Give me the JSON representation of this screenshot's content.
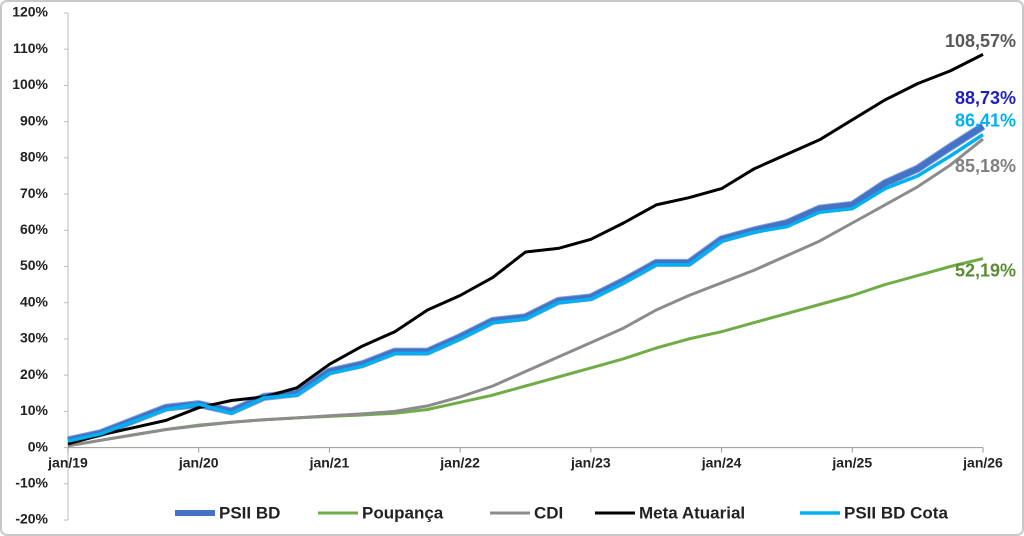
{
  "chart_data": {
    "type": "line",
    "categories": [
      "jan/19",
      null,
      null,
      null,
      "jan/20",
      null,
      null,
      null,
      "jan/21",
      null,
      null,
      null,
      "jan/22",
      null,
      null,
      null,
      "jan/23",
      null,
      null,
      null,
      "jan/24",
      null,
      null,
      null,
      "jan/25",
      null,
      null,
      null,
      "jan/26"
    ],
    "ylim": [
      -20,
      120
    ],
    "yticks": [
      {
        "value": -20,
        "label": "-20%"
      },
      {
        "value": -10,
        "label": "-10%"
      },
      {
        "value": 0,
        "label": "0%"
      },
      {
        "value": 10,
        "label": "10%"
      },
      {
        "value": 20,
        "label": "20%"
      },
      {
        "value": 30,
        "label": "30%"
      },
      {
        "value": 40,
        "label": "40%"
      },
      {
        "value": 50,
        "label": "50%"
      },
      {
        "value": 60,
        "label": "60%"
      },
      {
        "value": 70,
        "label": "70%"
      },
      {
        "value": 80,
        "label": "80%"
      },
      {
        "value": 90,
        "label": "90%"
      },
      {
        "value": 100,
        "label": "100%"
      },
      {
        "value": 110,
        "label": "110%"
      },
      {
        "value": 120,
        "label": "120%"
      }
    ],
    "grid": false,
    "legend": "bottom",
    "series": [
      {
        "name": "PSII BD",
        "color": "#4472c4",
        "width": 6,
        "label_color": "#1f1fbf",
        "values": [
          2,
          4,
          7.5,
          11,
          12,
          10,
          14,
          15,
          21,
          23,
          26.5,
          26.5,
          30.5,
          35,
          36,
          40.5,
          41.5,
          46,
          51,
          51,
          57.5,
          60,
          62,
          66,
          67,
          73,
          77,
          83,
          88.73
        ],
        "value_labels": [
          null,
          null,
          null,
          null,
          null,
          null,
          null,
          null,
          null,
          null,
          null,
          null,
          null,
          null,
          null,
          null,
          null,
          null,
          null,
          null,
          null,
          null,
          null,
          null,
          null,
          null,
          null,
          null,
          "88,73%"
        ]
      },
      {
        "name": "Poupança",
        "color": "#70ad47",
        "width": 3,
        "label_color": "#5b8c35",
        "values": [
          0.5,
          2,
          3.5,
          5,
          6.2,
          7,
          7.7,
          8.2,
          8.6,
          9,
          9.5,
          10.5,
          12.5,
          14.5,
          17,
          19.5,
          22,
          24.5,
          27.5,
          30,
          32,
          34.5,
          37,
          39.5,
          42,
          45,
          47.5,
          50,
          52.19
        ],
        "value_labels": [
          null,
          null,
          null,
          null,
          null,
          null,
          null,
          null,
          null,
          null,
          null,
          null,
          null,
          null,
          null,
          null,
          null,
          null,
          null,
          null,
          null,
          null,
          null,
          null,
          null,
          null,
          null,
          null,
          "52,19%"
        ]
      },
      {
        "name": "CDI",
        "color": "#8c8c8c",
        "width": 3,
        "label_color": "#808080",
        "values": [
          0.5,
          2,
          3.5,
          5,
          6,
          7,
          7.7,
          8.2,
          8.8,
          9.3,
          10,
          11.5,
          14,
          17,
          21,
          25,
          29,
          33,
          38,
          42,
          45.5,
          49,
          53,
          57,
          62,
          67,
          72,
          78,
          85.18
        ],
        "value_labels": [
          null,
          null,
          null,
          null,
          null,
          null,
          null,
          null,
          null,
          null,
          null,
          null,
          null,
          null,
          null,
          null,
          null,
          null,
          null,
          null,
          null,
          null,
          null,
          null,
          null,
          null,
          null,
          null,
          "85,18%"
        ]
      },
      {
        "name": "Meta Atuarial",
        "color": "#000000",
        "width": 3,
        "label_color": "#595959",
        "values": [
          1,
          3.5,
          5.5,
          7.5,
          11,
          13,
          14,
          16.5,
          23,
          28,
          32,
          38,
          42,
          47,
          54,
          55,
          57.5,
          62,
          67,
          69,
          71.5,
          77,
          81,
          85,
          90.5,
          96,
          100.5,
          104,
          108.57
        ],
        "value_labels": [
          null,
          null,
          null,
          null,
          null,
          null,
          null,
          null,
          null,
          null,
          null,
          null,
          null,
          null,
          null,
          null,
          null,
          null,
          null,
          null,
          null,
          null,
          null,
          null,
          null,
          null,
          null,
          null,
          "108,57%"
        ]
      },
      {
        "name": "PSII BD Cota",
        "color": "#00b0f0",
        "width": 3.5,
        "label_color": "#00b0f0",
        "values": [
          1.8,
          3.8,
          7.2,
          10.5,
          12,
          9.5,
          13.8,
          14.5,
          20.5,
          22.5,
          26,
          26,
          30,
          34.5,
          35.5,
          40,
          41,
          45.5,
          50.5,
          50.5,
          57,
          59.5,
          61,
          65,
          66,
          71.5,
          75,
          80.5,
          86.41
        ],
        "value_labels": [
          null,
          null,
          null,
          null,
          null,
          null,
          null,
          null,
          null,
          null,
          null,
          null,
          null,
          null,
          null,
          null,
          null,
          null,
          null,
          null,
          null,
          null,
          null,
          null,
          null,
          null,
          null,
          null,
          "86,41%"
        ]
      }
    ]
  }
}
